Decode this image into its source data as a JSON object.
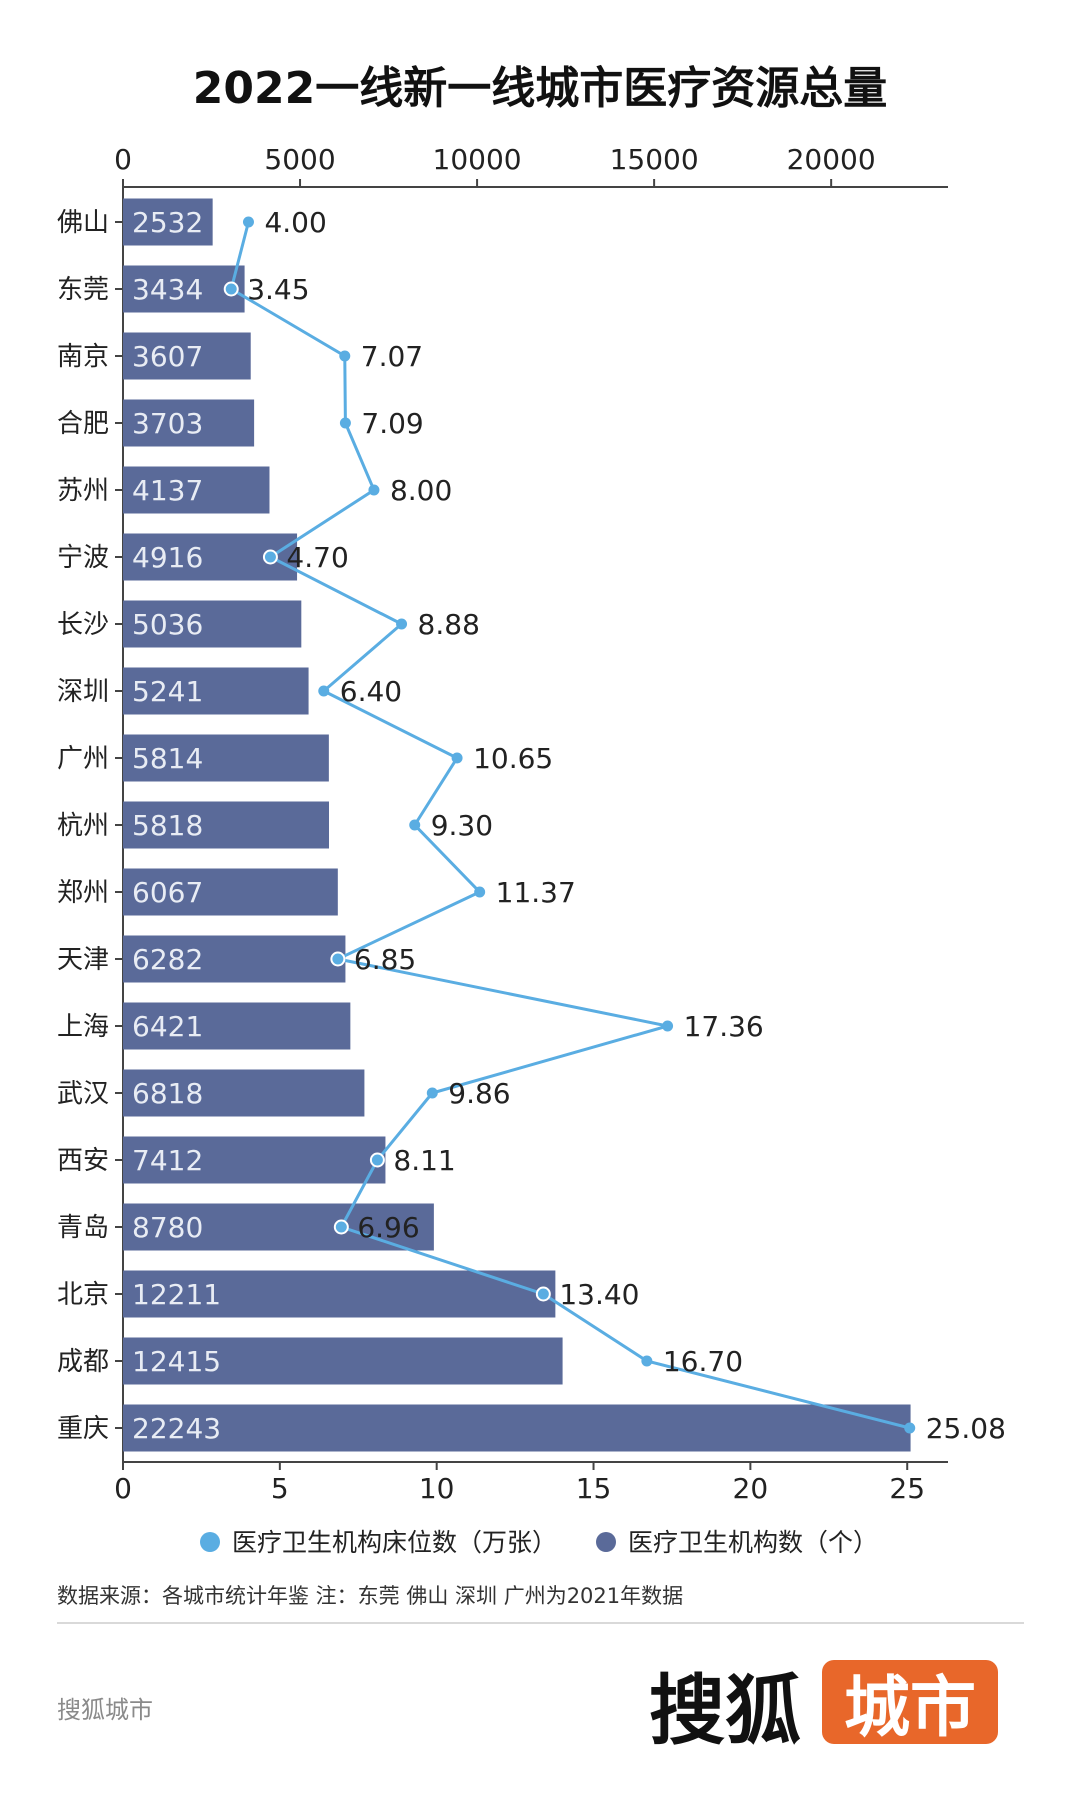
{
  "chart_data": {
    "type": "bar",
    "title": "2022一线新一线城市医疗资源总量",
    "categories": [
      "佛山",
      "东莞",
      "南京",
      "合肥",
      "苏州",
      "宁波",
      "长沙",
      "深圳",
      "广州",
      "杭州",
      "郑州",
      "天津",
      "上海",
      "武汉",
      "西安",
      "青岛",
      "北京",
      "成都",
      "重庆"
    ],
    "series": [
      {
        "name": "医疗卫生机构数（个）",
        "kind": "bar",
        "axis": "top",
        "color": "#5a6a99",
        "values": [
          2532,
          3434,
          3607,
          3703,
          4137,
          4916,
          5036,
          5241,
          5814,
          5818,
          6067,
          6282,
          6421,
          6818,
          7412,
          8780,
          12211,
          12415,
          22243
        ],
        "labels": [
          "2532",
          "3434",
          "3607",
          "3703",
          "4137",
          "4916",
          "5036",
          "5241",
          "5814",
          "5818",
          "6067",
          "6282",
          "6421",
          "6818",
          "7412",
          "8780",
          "12211",
          "12415",
          "22243"
        ]
      },
      {
        "name": "医疗卫生机构床位数（万张）",
        "kind": "line",
        "axis": "bottom",
        "color": "#5aade2",
        "values": [
          4.0,
          3.45,
          7.07,
          7.09,
          8.0,
          4.7,
          8.88,
          6.4,
          10.65,
          9.3,
          11.37,
          6.85,
          17.36,
          9.86,
          8.11,
          6.96,
          13.4,
          16.7,
          25.08
        ],
        "labels": [
          "4.00",
          "3.45",
          "7.07",
          "7.09",
          "8.00",
          "4.70",
          "8.88",
          "6.40",
          "10.65",
          "9.30",
          "11.37",
          "6.85",
          "17.36",
          "9.86",
          "8.11",
          "6.96",
          "13.40",
          "16.70",
          "25.08"
        ]
      }
    ],
    "top_axis": {
      "range": [
        0,
        23300
      ],
      "ticks": [
        0,
        5000,
        10000,
        15000,
        20000
      ],
      "tick_labels": [
        "0",
        "5000",
        "10000",
        "15000",
        "20000"
      ]
    },
    "bottom_axis": {
      "range": [
        0,
        26.3
      ],
      "ticks": [
        0,
        5,
        10,
        15,
        20,
        25
      ],
      "tick_labels": [
        "0",
        "5",
        "10",
        "15",
        "20",
        "25"
      ]
    },
    "grid": false,
    "legend_position": "bottom"
  },
  "source_note": "数据来源：各城市统计年鉴 注：东莞 佛山 深圳 广州为2021年数据",
  "watermark": "搜狐城市",
  "logo": {
    "left": "搜狐",
    "right": "城市",
    "badge_color": "#e8672a"
  }
}
